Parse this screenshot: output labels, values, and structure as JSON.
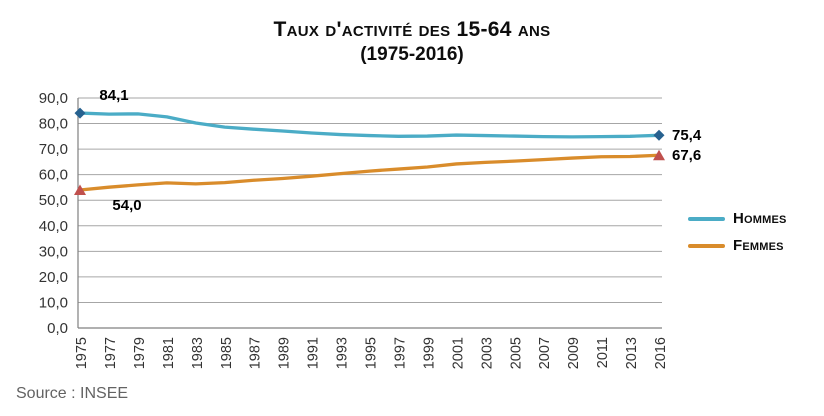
{
  "title": {
    "line1": "Taux d'activité des 15-64 ans",
    "line2": "(1975-2016)"
  },
  "source": "Source : INSEE",
  "colors": {
    "hommes_line": "#4BACC6",
    "femmes_line": "#D98C2B",
    "hommes_marker": "#27618F",
    "femmes_marker": "#C0504D",
    "gridline": "#A6A6A6",
    "axis": "#808080",
    "tick_text": "#333333",
    "source_text": "#636363"
  },
  "chart_data": {
    "type": "line",
    "categories": [
      "1975",
      "1977",
      "1979",
      "1981",
      "1983",
      "1985",
      "1987",
      "1989",
      "1991",
      "1993",
      "1995",
      "1997",
      "1999",
      "2001",
      "2003",
      "2005",
      "2007",
      "2009",
      "2011",
      "2013",
      "2016"
    ],
    "series": [
      {
        "name": "Hommes",
        "color": "#4BACC6",
        "marker": "diamond",
        "marker_color": "#27618F",
        "values": [
          84.1,
          83.7,
          83.8,
          82.6,
          80.2,
          78.6,
          77.8,
          77.1,
          76.3,
          75.7,
          75.3,
          75.0,
          75.1,
          75.5,
          75.3,
          75.1,
          74.9,
          74.8,
          74.9,
          75.0,
          75.4
        ]
      },
      {
        "name": "Femmes",
        "color": "#D98C2B",
        "marker": "triangle",
        "marker_color": "#C0504D",
        "values": [
          54.0,
          55.1,
          56.0,
          56.8,
          56.4,
          56.9,
          57.8,
          58.5,
          59.4,
          60.4,
          61.4,
          62.2,
          63.0,
          64.2,
          64.8,
          65.3,
          65.9,
          66.5,
          67.0,
          67.1,
          67.6
        ]
      }
    ],
    "title": "Taux d'activité des 15-64 ans (1975-2016)",
    "xlabel": "",
    "ylabel": "",
    "ylim": [
      0,
      90
    ],
    "ytick_step": 10,
    "ytick_labels": [
      "0,0",
      "10,0",
      "20,0",
      "30,0",
      "40,0",
      "50,0",
      "60,0",
      "70,0",
      "80,0",
      "90,0"
    ],
    "grid": true,
    "legend_position": "right",
    "point_labels": {
      "hommes_start": "84,1",
      "hommes_end": "75,4",
      "femmes_start": "54,0",
      "femmes_end": "67,6"
    }
  },
  "legend": {
    "items": [
      {
        "label": "Hommes"
      },
      {
        "label": "Femmes"
      }
    ]
  }
}
